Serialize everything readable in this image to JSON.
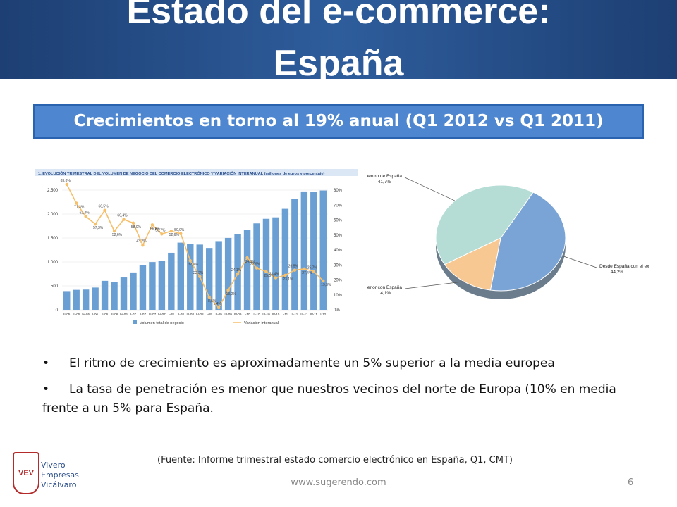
{
  "slide": {
    "title_lines": [
      "Estado del e-commerce:",
      "España"
    ],
    "banner": "Crecimientos en torno al 19% anual (Q1 2012 vs Q1 2011)",
    "bullets": [
      "El ritmo de crecimiento es aproximadamente un 5% superior a la media europea",
      "La tasa de penetración es menor que nuestros vecinos del norte de Europa (10% en media frente a un 5% para España."
    ],
    "source": "(Fuente:  Informe trimestral estado comercio electrónico en España,  Q1, CMT)",
    "footer_url": "www.sugerendo.com",
    "page_number": 6,
    "logo": {
      "mark": "VEV",
      "lines": [
        "Vivero",
        "Empresas",
        "Vicálvaro"
      ]
    }
  },
  "chart_data": [
    {
      "type": "bar",
      "title": "1. EVOLUCIÓN TRIMESTRAL DEL VOLUMEN DE NEGOCIO DEL COMERCIO ELECTRÓNICO Y VARIACIÓN INTERANUAL (millones de euros y porcentaje)",
      "categories": [
        "II-05",
        "III-05",
        "IV-05",
        "I-06",
        "II-06",
        "III-06",
        "IV-06",
        "I-07",
        "II-07",
        "III-07",
        "IV-07",
        "I-08",
        "II-08",
        "III-08",
        "IV-08",
        "I-09",
        "II-09",
        "III-09",
        "IV-09",
        "I-10",
        "II-10",
        "III-10",
        "IV-10",
        "I-11",
        "II-11",
        "III-11",
        "IV-11",
        "I-12"
      ],
      "series": [
        {
          "name": "Volumen total de negocio",
          "color": "#6a9fd4",
          "values": [
            391,
            417,
            423,
            465,
            605,
            588,
            676,
            781,
            930,
            998,
            1017,
            1192,
            1403,
            1377,
            1362,
            1292,
            1435,
            1501,
            1582,
            1665,
            1805,
            1901,
            1931,
            2109,
            2323,
            2472,
            2464,
            2492
          ]
        },
        {
          "name": "Variación interanual",
          "type": "line",
          "axis": "y2",
          "color": "#f6bf6a",
          "values": [
            83.8,
            71.3,
            62.4,
            57.3,
            66.5,
            52.6,
            60.4,
            58.0,
            43.2,
            56.8,
            50.7,
            52.6,
            50.9,
            32.9,
            22.2,
            8.5,
            1.4,
            13.2,
            24.1,
            34.8,
            27.9,
            25.5,
            21.4,
            23.1,
            26.5,
            27.4,
            25.7,
            19.3
          ],
          "value_labels": [
            "83,8%",
            "71,3%",
            "62,4%",
            "57,3%",
            "66,5%",
            "52,6%",
            "60,4%",
            "58,0%",
            "43,2%",
            "56,8%",
            "50,7%",
            "52,6%",
            "50,9%",
            "32,9%",
            "22,2%",
            "8,5%",
            "1,4%",
            "13,2%",
            "24,1%",
            "34,8%",
            "27,9%",
            "25,5%",
            "21,4%",
            "23,1%",
            "26,5%",
            "27,4%",
            "25,7%",
            "19,3%"
          ]
        }
      ],
      "ylim": [
        0,
        2500
      ],
      "yticks": [
        0,
        500,
        {
          "value": 1000,
          "label": "1.000"
        },
        {
          "value": 1500,
          "label": "1.500"
        },
        {
          "value": 2000,
          "label": "2.000"
        },
        {
          "value": 2500,
          "label": "2.500"
        }
      ],
      "y2lim": [
        0,
        80
      ],
      "y2ticks": [
        {
          "value": 0,
          "label": "0%"
        },
        {
          "value": 10,
          "label": "10%"
        },
        {
          "value": 20,
          "label": "20%"
        },
        {
          "value": 30,
          "label": "30%"
        },
        {
          "value": 40,
          "label": "40%"
        },
        {
          "value": 50,
          "label": "50%"
        },
        {
          "value": 60,
          "label": "60%"
        },
        {
          "value": 70,
          "label": "70%"
        },
        {
          "value": 80,
          "label": "80%"
        }
      ],
      "grid": true
    },
    {
      "type": "pie",
      "categories": [
        "Desde España con el exterior",
        "Desde el exterior con España",
        "Dentro de España"
      ],
      "values": [
        44.2,
        14.1,
        41.7
      ],
      "value_labels": [
        "44,2%",
        "14,1%",
        "41,7%"
      ],
      "colors": [
        "#7aa3d6",
        "#f8c893",
        "#b5ddd6"
      ]
    }
  ]
}
